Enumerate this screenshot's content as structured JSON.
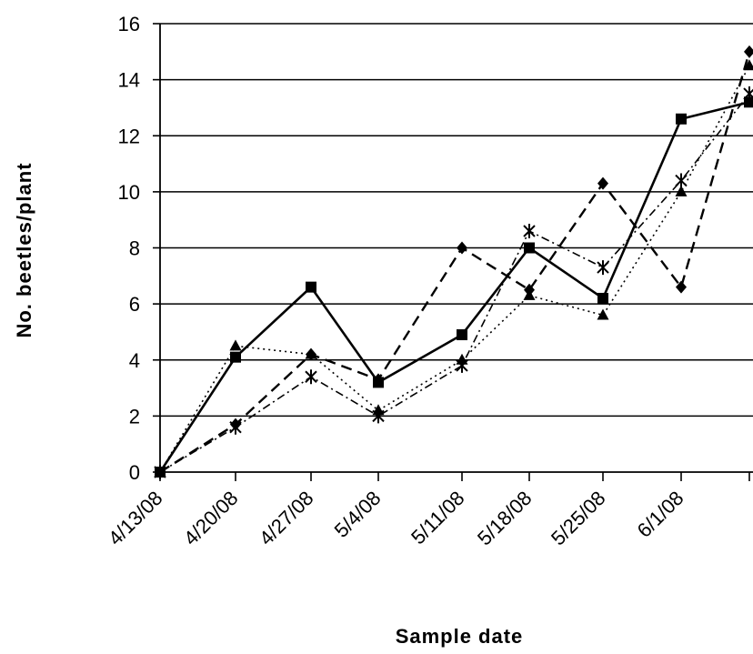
{
  "chart_data": {
    "type": "line",
    "title": "",
    "xlabel": "Sample date",
    "ylabel": "No. beetles/plant",
    "categories": [
      "4/13/08",
      "4/20/08",
      "4/27/08",
      "5/4/08",
      "5/11/08",
      "5/18/08",
      "5/25/08",
      "6/1/08",
      ""
    ],
    "ylim": [
      0,
      16
    ],
    "yticks": [
      0,
      2,
      4,
      6,
      8,
      10,
      12,
      14,
      16
    ],
    "grid": true,
    "legend": "none",
    "series": [
      {
        "style": "solid-square",
        "values": [
          0,
          4.1,
          6.6,
          3.2,
          4.9,
          8.0,
          6.2,
          12.6,
          13.2
        ]
      },
      {
        "style": "dashed-diamond",
        "values": [
          0,
          1.7,
          4.2,
          3.3,
          8.0,
          6.5,
          10.3,
          6.6,
          15.0
        ]
      },
      {
        "style": "dotted-triangle",
        "values": [
          0,
          4.5,
          4.2,
          2.2,
          4.0,
          6.3,
          5.6,
          10.0,
          14.5
        ]
      },
      {
        "style": "dashdot-star",
        "values": [
          0,
          1.6,
          3.4,
          2.0,
          3.8,
          8.6,
          7.3,
          10.4,
          13.5
        ]
      }
    ]
  }
}
